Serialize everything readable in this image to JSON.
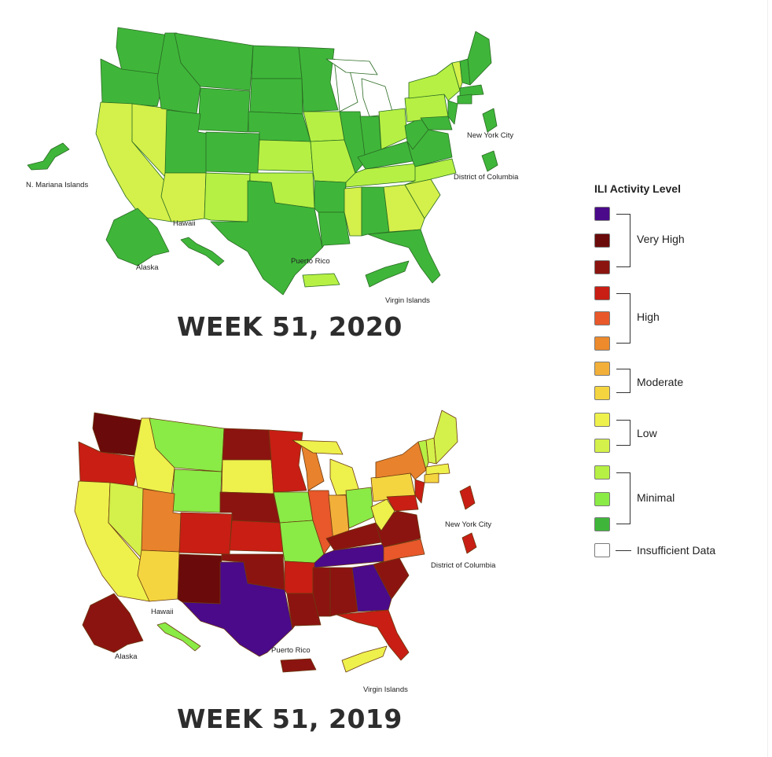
{
  "maps": [
    {
      "title": "WEEK 51,  2020",
      "labels": {
        "mariana": "N. Mariana Islands",
        "hawaii": "Hawaii",
        "alaska": "Alaska",
        "puerto_rico": "Puerto Rico",
        "virgin_islands": "Virgin Islands",
        "nyc": "New York City",
        "dc": "District of Columbia"
      }
    },
    {
      "title": "WEEK 51,  2019",
      "labels": {
        "hawaii": "Hawaii",
        "alaska": "Alaska",
        "puerto_rico": "Puerto Rico",
        "virgin_islands": "Virgin Islands",
        "nyc": "New York City",
        "dc": "District of Columbia"
      }
    }
  ],
  "legend": {
    "title": "ILI Activity Level",
    "swatches": [
      "#4a0a8a",
      "#6b0a0a",
      "#8b1410",
      "#c81e14",
      "#e8582a",
      "#ec8a2c",
      "#f2b03a",
      "#f4d540",
      "#eef04c",
      "#d4f04a",
      "#b6f044",
      "#8aea46",
      "#3fb63a",
      "#ffffff"
    ],
    "groups": [
      {
        "label": "Very High"
      },
      {
        "label": "High"
      },
      {
        "label": "Moderate"
      },
      {
        "label": "Low"
      },
      {
        "label": "Minimal"
      }
    ],
    "insufficient_label": "Insufficient Data"
  },
  "colors": {
    "minimal_dark": "#3fb63a",
    "minimal_mid": "#6fd43e",
    "minimal_light": "#a8ec4a",
    "low_light": "#d4f04a",
    "low": "#eef04c",
    "moderate": "#f4d540",
    "high": "#c81e14",
    "high_orange": "#e8822c",
    "very_high": "#6b0a0a",
    "very_high_mid": "#8b1410",
    "purple": "#4a0a8a",
    "insufficient": "#ffffff"
  }
}
